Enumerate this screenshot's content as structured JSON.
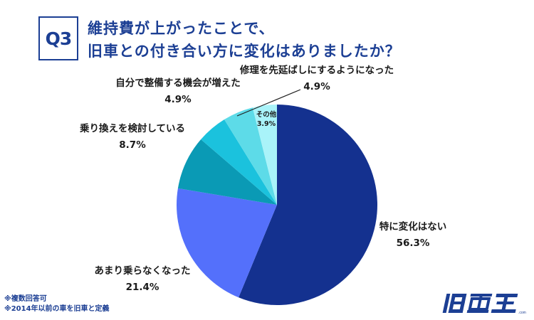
{
  "header": {
    "question_badge": "Q3",
    "title_line1": "維持費が上がったことで、",
    "title_line2": "旧車との付き合い方に変化はありましたか？"
  },
  "chart_data": {
    "type": "pie",
    "title": "維持費が上がったことで、旧車との付き合い方に変化はありましたか？",
    "start_angle": "top (12 o'clock), clockwise",
    "categories": [
      "特に変化はない",
      "あまり乗らなくなった",
      "乗り換えを検討している",
      "自分で整備する機会が増えた",
      "修理を先延ばしにするようになった",
      "その他"
    ],
    "values": [
      56.3,
      21.4,
      8.7,
      4.9,
      4.9,
      3.9
    ],
    "labels": [
      "56.3%",
      "21.4%",
      "8.7%",
      "4.9%",
      "4.9%",
      "3.9%"
    ],
    "colors": [
      "#14318f",
      "#5470fb",
      "#0a9ab5",
      "#1bc2dd",
      "#5ddbe8",
      "#a9f3f9"
    ],
    "unit": "%"
  },
  "notes": {
    "line1": "※複数回答可",
    "line2": "※2014年以前の車を旧車と定義"
  },
  "logo": {
    "text": "旧車王",
    "color": "#1c3f94"
  }
}
